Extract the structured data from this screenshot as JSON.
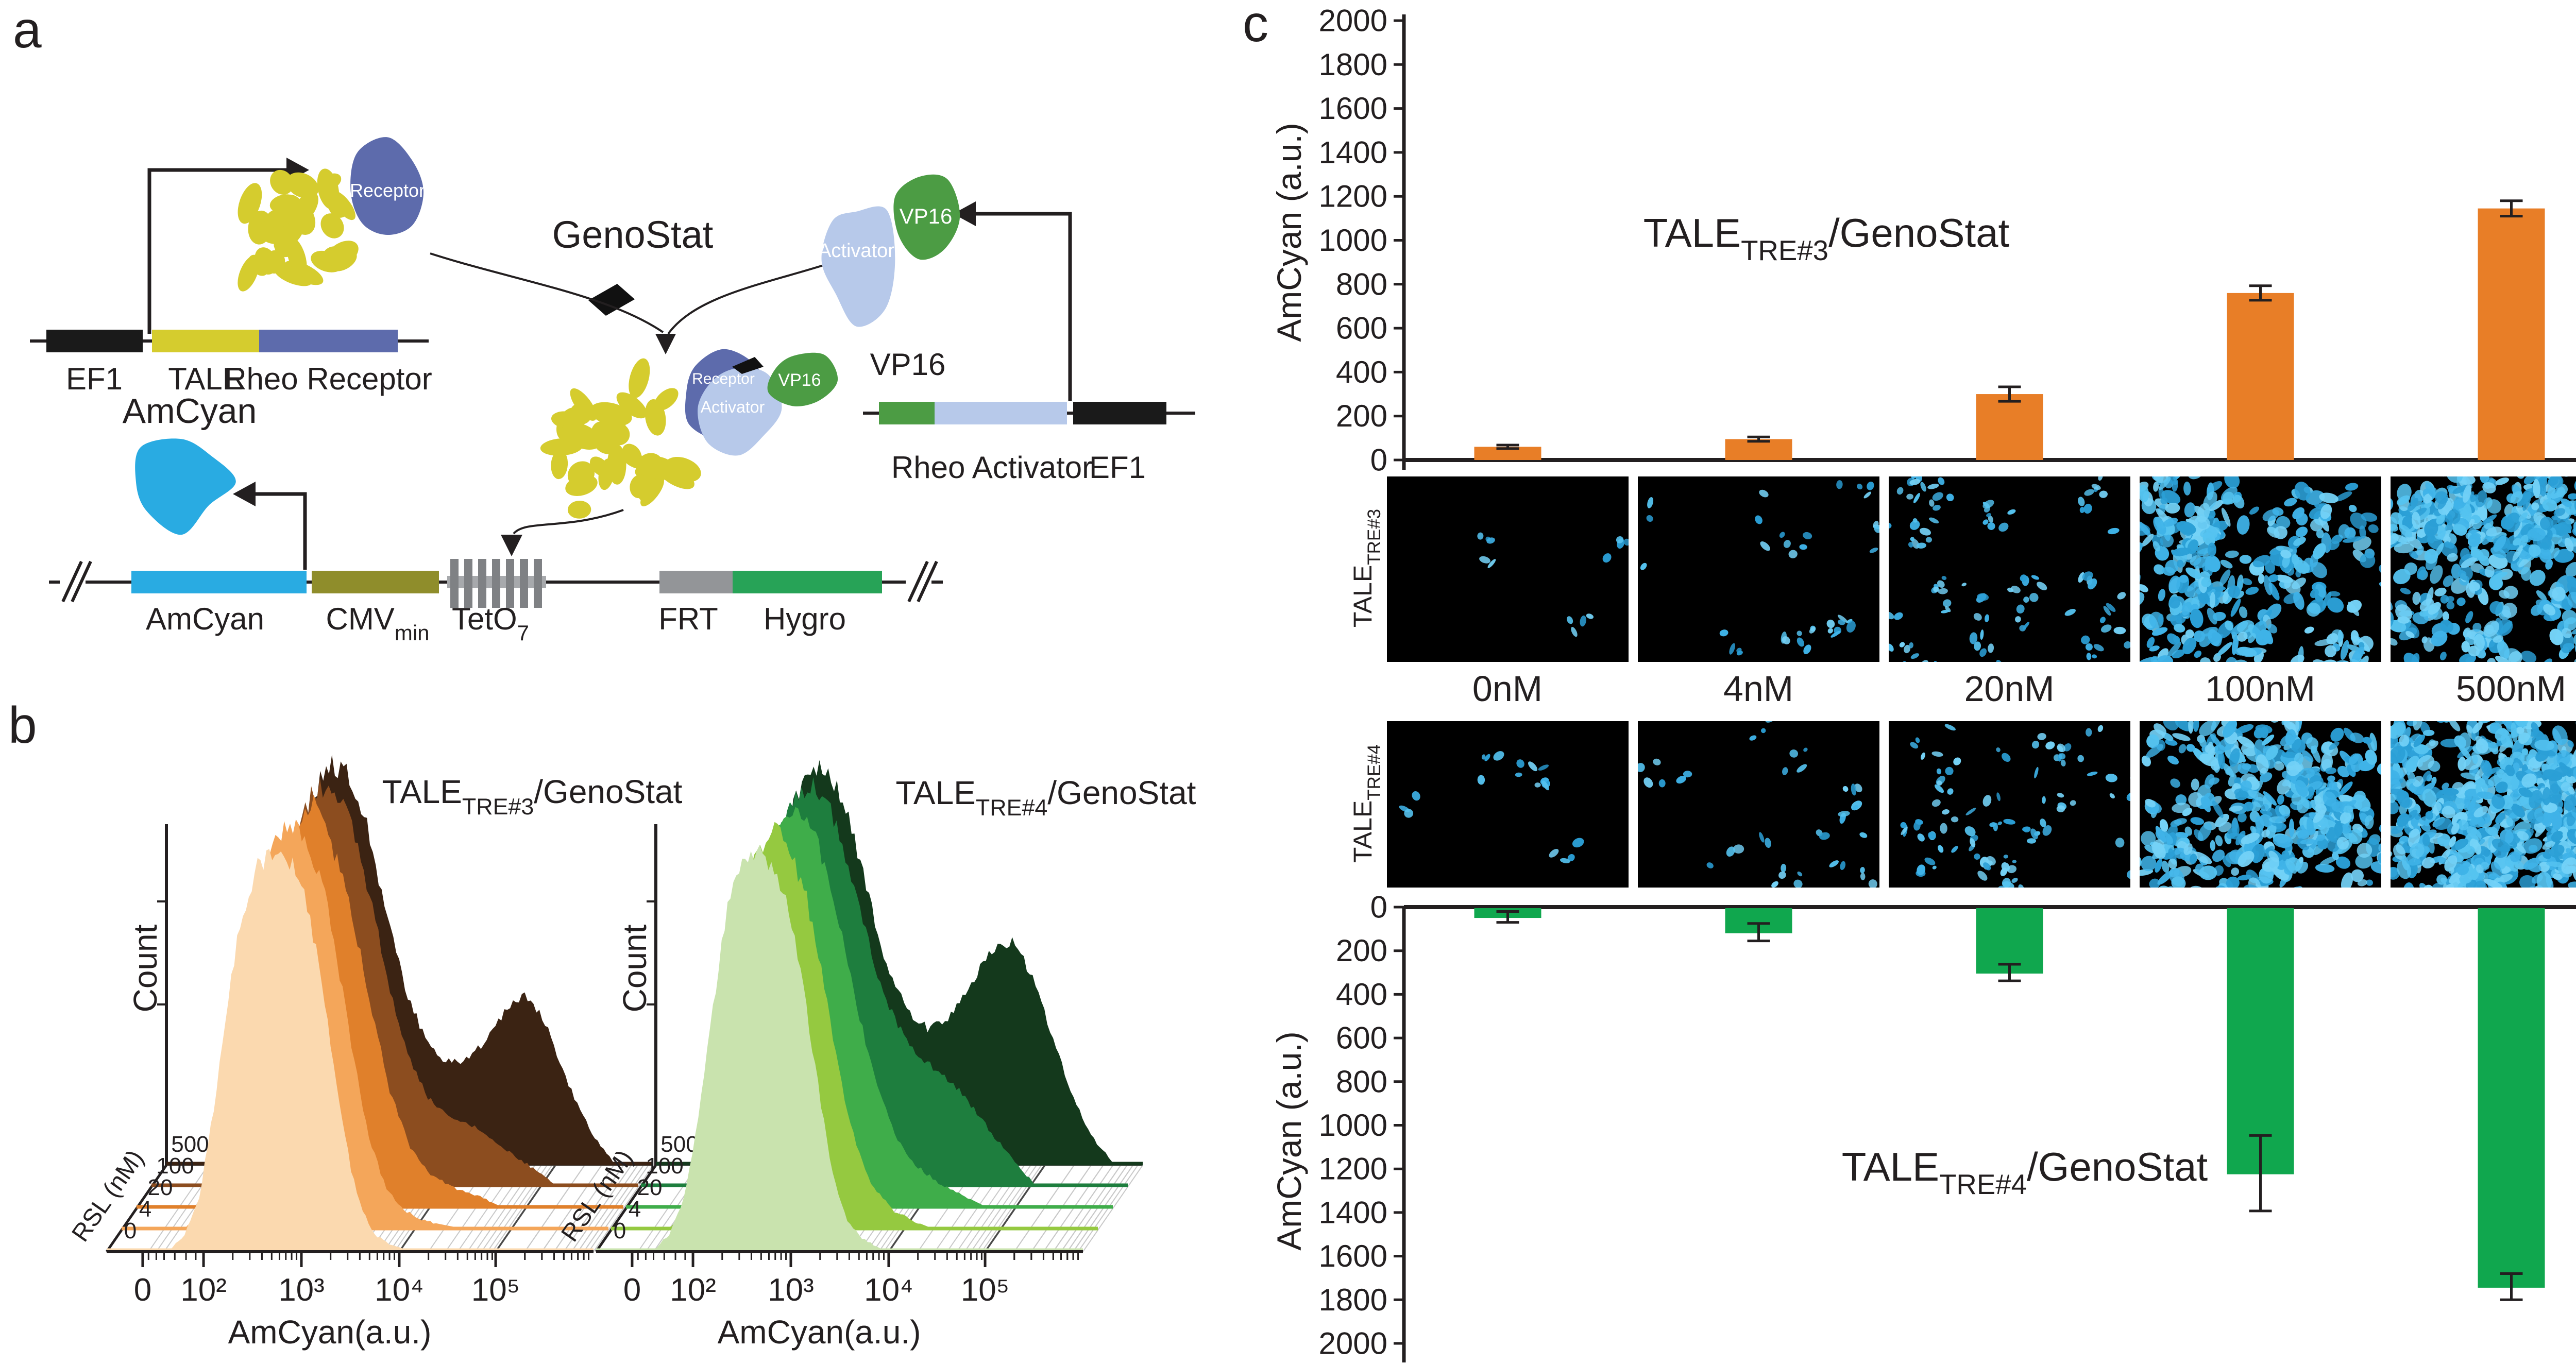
{
  "panels": {
    "a": "a",
    "b": "b",
    "c": "c"
  },
  "panel_a": {
    "genostat": "GenoStat",
    "amcyan_title": "AmCyan",
    "construct_receptor": {
      "ef1": "EF1",
      "tale": "TALE",
      "rheo_receptor": "Rheo Receptor"
    },
    "construct_activator": {
      "vp16_above": "VP16",
      "rheo_activator": "Rheo Activator",
      "ef1": "EF1"
    },
    "construct_reporter": {
      "amcyan": "AmCyan",
      "cmv": "CMV",
      "cmv_sub": "min",
      "teto": "TetO",
      "teto_sub": "7",
      "frt": "FRT",
      "hygro": "Hygro"
    },
    "proteins": {
      "receptor": "Receptor",
      "activator": "Activator",
      "vp16": "VP16"
    }
  },
  "microscopy": {
    "concentrations": [
      "0nM",
      "4nM",
      "20nM",
      "100nM",
      "500nM"
    ],
    "rows": [
      {
        "label_pre": "TALE",
        "label_sub": "TRE#3",
        "densities": [
          14,
          40,
          110,
          380,
          600
        ]
      },
      {
        "label_pre": "TALE",
        "label_sub": "TRE#4",
        "densities": [
          20,
          38,
          100,
          480,
          900
        ]
      }
    ],
    "cell_colors": [
      "#2B9FD6",
      "#3FB3E8",
      "#55C3F0",
      "#74D2F7"
    ]
  },
  "chart_data": [
    {
      "id": "ridge_tre3",
      "type": "area",
      "title_pre": "TALE",
      "title_sub": "TRE#3",
      "title_post": "/GenoStat",
      "xlabel": "AmCyan(a.u.)",
      "ylabel": "Count",
      "zlabel": "RSL (nM)",
      "z_levels": [
        "0",
        "4",
        "20",
        "100",
        "500"
      ],
      "x_ticks": [
        {
          "label": "0",
          "u": 0.074
        },
        {
          "label": "10²",
          "u": 0.199
        },
        {
          "label": "10³",
          "u": 0.4
        },
        {
          "label": "10⁴",
          "u": 0.601
        },
        {
          "label": "10⁵",
          "u": 0.799
        }
      ],
      "colors": [
        "#FBD9AF",
        "#F4A65A",
        "#E0802B",
        "#8C4D1F",
        "#3B2313"
      ],
      "profiles": [
        [
          [
            0.13,
            0
          ],
          [
            0.16,
            0.04
          ],
          [
            0.19,
            0.13
          ],
          [
            0.22,
            0.35
          ],
          [
            0.25,
            0.63
          ],
          [
            0.28,
            0.85
          ],
          [
            0.31,
            0.95
          ],
          [
            0.35,
            1.0
          ],
          [
            0.38,
            0.96
          ],
          [
            0.41,
            0.87
          ],
          [
            0.44,
            0.68
          ],
          [
            0.47,
            0.44
          ],
          [
            0.5,
            0.21
          ],
          [
            0.525,
            0.1
          ],
          [
            0.55,
            0.04
          ],
          [
            0.58,
            0.015
          ],
          [
            0.62,
            0
          ]
        ],
        [
          [
            0.13,
            0
          ],
          [
            0.165,
            0.05
          ],
          [
            0.195,
            0.15
          ],
          [
            0.225,
            0.38
          ],
          [
            0.255,
            0.66
          ],
          [
            0.285,
            0.88
          ],
          [
            0.32,
            0.98
          ],
          [
            0.355,
            1.0
          ],
          [
            0.39,
            0.93
          ],
          [
            0.42,
            0.82
          ],
          [
            0.45,
            0.62
          ],
          [
            0.48,
            0.4
          ],
          [
            0.51,
            0.22
          ],
          [
            0.54,
            0.11
          ],
          [
            0.57,
            0.055
          ],
          [
            0.61,
            0.025
          ],
          [
            0.65,
            0.012
          ],
          [
            0.7,
            0
          ]
        ],
        [
          [
            0.13,
            0
          ],
          [
            0.17,
            0.06
          ],
          [
            0.21,
            0.21
          ],
          [
            0.25,
            0.5
          ],
          [
            0.29,
            0.82
          ],
          [
            0.33,
            0.97
          ],
          [
            0.365,
            1.0
          ],
          [
            0.4,
            0.91
          ],
          [
            0.44,
            0.74
          ],
          [
            0.48,
            0.51
          ],
          [
            0.52,
            0.29
          ],
          [
            0.56,
            0.155
          ],
          [
            0.6,
            0.085
          ],
          [
            0.65,
            0.048
          ],
          [
            0.7,
            0.028
          ],
          [
            0.75,
            0
          ]
        ],
        [
          [
            0.13,
            0
          ],
          [
            0.17,
            0.07
          ],
          [
            0.21,
            0.22
          ],
          [
            0.25,
            0.52
          ],
          [
            0.29,
            0.85
          ],
          [
            0.33,
            0.98
          ],
          [
            0.37,
            1.0
          ],
          [
            0.41,
            0.9
          ],
          [
            0.45,
            0.71
          ],
          [
            0.49,
            0.49
          ],
          [
            0.53,
            0.31
          ],
          [
            0.57,
            0.215
          ],
          [
            0.61,
            0.175
          ],
          [
            0.65,
            0.155
          ],
          [
            0.69,
            0.125
          ],
          [
            0.73,
            0.085
          ],
          [
            0.78,
            0.045
          ],
          [
            0.83,
            0
          ]
        ],
        [
          [
            0.13,
            0
          ],
          [
            0.17,
            0.08
          ],
          [
            0.21,
            0.24
          ],
          [
            0.25,
            0.55
          ],
          [
            0.29,
            0.88
          ],
          [
            0.33,
            1.0
          ],
          [
            0.37,
            0.97
          ],
          [
            0.41,
            0.85
          ],
          [
            0.45,
            0.64
          ],
          [
            0.49,
            0.44
          ],
          [
            0.53,
            0.315
          ],
          [
            0.57,
            0.255
          ],
          [
            0.61,
            0.255
          ],
          [
            0.65,
            0.3
          ],
          [
            0.68,
            0.355
          ],
          [
            0.71,
            0.4
          ],
          [
            0.74,
            0.415
          ],
          [
            0.77,
            0.375
          ],
          [
            0.8,
            0.28
          ],
          [
            0.84,
            0.155
          ],
          [
            0.88,
            0.065
          ],
          [
            0.92,
            0
          ]
        ]
      ]
    },
    {
      "id": "ridge_tre4",
      "type": "area",
      "title_pre": "TALE",
      "title_sub": "TRE#4",
      "title_post": "/GenoStat",
      "xlabel": "AmCyan(a.u.)",
      "ylabel": "Count",
      "zlabel": "RSL (nM)",
      "z_levels": [
        "0",
        "4",
        "20",
        "100",
        "500"
      ],
      "x_ticks": [
        {
          "label": "0",
          "u": 0.074
        },
        {
          "label": "10²",
          "u": 0.199
        },
        {
          "label": "10³",
          "u": 0.4
        },
        {
          "label": "10⁴",
          "u": 0.601
        },
        {
          "label": "10⁵",
          "u": 0.799
        }
      ],
      "colors": [
        "#C9E3AE",
        "#95C940",
        "#3FAD4A",
        "#1E7E3E",
        "#14391C"
      ],
      "profiles": [
        [
          [
            0.12,
            0
          ],
          [
            0.15,
            0.04
          ],
          [
            0.18,
            0.13
          ],
          [
            0.21,
            0.33
          ],
          [
            0.24,
            0.61
          ],
          [
            0.27,
            0.85
          ],
          [
            0.3,
            0.96
          ],
          [
            0.335,
            1.0
          ],
          [
            0.365,
            0.95
          ],
          [
            0.395,
            0.85
          ],
          [
            0.425,
            0.66
          ],
          [
            0.455,
            0.42
          ],
          [
            0.485,
            0.19
          ],
          [
            0.515,
            0.075
          ],
          [
            0.545,
            0.03
          ],
          [
            0.59,
            0
          ]
        ],
        [
          [
            0.12,
            0
          ],
          [
            0.155,
            0.05
          ],
          [
            0.19,
            0.16
          ],
          [
            0.225,
            0.4
          ],
          [
            0.26,
            0.7
          ],
          [
            0.295,
            0.92
          ],
          [
            0.33,
            1.0
          ],
          [
            0.365,
            0.95
          ],
          [
            0.4,
            0.83
          ],
          [
            0.435,
            0.62
          ],
          [
            0.47,
            0.38
          ],
          [
            0.505,
            0.2
          ],
          [
            0.54,
            0.1
          ],
          [
            0.58,
            0.045
          ],
          [
            0.62,
            0.02
          ],
          [
            0.66,
            0
          ]
        ],
        [
          [
            0.12,
            0
          ],
          [
            0.16,
            0.07
          ],
          [
            0.2,
            0.22
          ],
          [
            0.24,
            0.52
          ],
          [
            0.28,
            0.84
          ],
          [
            0.32,
            0.98
          ],
          [
            0.355,
            1.0
          ],
          [
            0.395,
            0.9
          ],
          [
            0.435,
            0.72
          ],
          [
            0.475,
            0.5
          ],
          [
            0.515,
            0.3
          ],
          [
            0.555,
            0.175
          ],
          [
            0.595,
            0.105
          ],
          [
            0.64,
            0.06
          ],
          [
            0.69,
            0.03
          ],
          [
            0.74,
            0
          ]
        ],
        [
          [
            0.12,
            0
          ],
          [
            0.16,
            0.07
          ],
          [
            0.2,
            0.23
          ],
          [
            0.24,
            0.53
          ],
          [
            0.28,
            0.86
          ],
          [
            0.32,
            0.98
          ],
          [
            0.36,
            1.0
          ],
          [
            0.4,
            0.9
          ],
          [
            0.44,
            0.73
          ],
          [
            0.48,
            0.55
          ],
          [
            0.52,
            0.415
          ],
          [
            0.56,
            0.335
          ],
          [
            0.6,
            0.295
          ],
          [
            0.64,
            0.255
          ],
          [
            0.68,
            0.195
          ],
          [
            0.72,
            0.13
          ],
          [
            0.76,
            0.07
          ],
          [
            0.81,
            0
          ]
        ],
        [
          [
            0.12,
            0
          ],
          [
            0.16,
            0.08
          ],
          [
            0.2,
            0.245
          ],
          [
            0.24,
            0.555
          ],
          [
            0.28,
            0.88
          ],
          [
            0.32,
            1.0
          ],
          [
            0.36,
            0.965
          ],
          [
            0.4,
            0.845
          ],
          [
            0.44,
            0.645
          ],
          [
            0.48,
            0.475
          ],
          [
            0.52,
            0.375
          ],
          [
            0.56,
            0.335
          ],
          [
            0.6,
            0.355
          ],
          [
            0.64,
            0.435
          ],
          [
            0.68,
            0.52
          ],
          [
            0.71,
            0.555
          ],
          [
            0.74,
            0.545
          ],
          [
            0.78,
            0.445
          ],
          [
            0.82,
            0.295
          ],
          [
            0.86,
            0.155
          ],
          [
            0.9,
            0.06
          ],
          [
            0.94,
            0
          ]
        ]
      ]
    },
    {
      "id": "bar_tre3",
      "type": "bar",
      "direction": "up",
      "title_pre": "TALE",
      "title_sub": "TRE#3",
      "title_post": "/GenoStat",
      "ylabel": "AmCyan (a.u.)",
      "ylim": [
        0,
        2000
      ],
      "ytick_step": 200,
      "categories": [
        "0nM",
        "4nM",
        "20nM",
        "100nM",
        "500nM"
      ],
      "values": [
        60,
        95,
        300,
        760,
        1145
      ],
      "errors": [
        8,
        10,
        33,
        33,
        35
      ],
      "color": "#E87E27"
    },
    {
      "id": "bar_tre4",
      "type": "bar",
      "direction": "down",
      "title_pre": "TALE",
      "title_sub": "TRE#4",
      "title_post": "/GenoStat",
      "ylabel": "AmCyan (a.u.)",
      "ylim": [
        0,
        2000
      ],
      "ytick_step": 200,
      "categories": [
        "0nM",
        "4nM",
        "20nM",
        "100nM",
        "500nM"
      ],
      "values": [
        45,
        115,
        300,
        1220,
        1740
      ],
      "errors": [
        25,
        40,
        38,
        173,
        60
      ],
      "color": "#10A74E"
    }
  ]
}
